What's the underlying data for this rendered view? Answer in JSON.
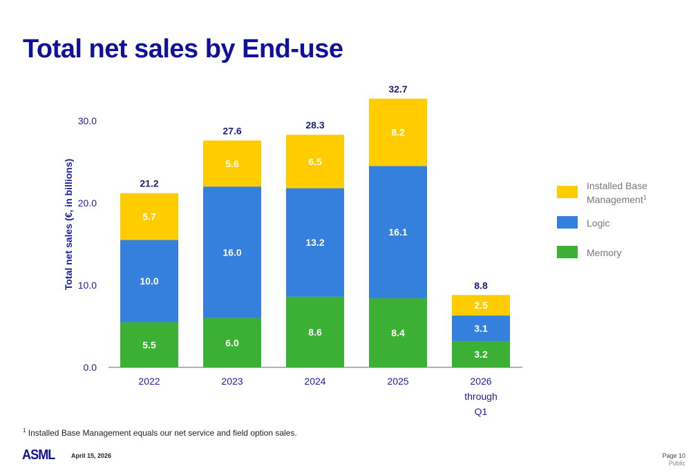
{
  "chart_data": {
    "type": "bar",
    "stacked": true,
    "title": "Total net sales by End-use",
    "ylabel": "Total net sales (€, in billions)",
    "ylim": [
      0,
      30
    ],
    "yticks": [
      "0.0",
      "10.0",
      "20.0",
      "30.0"
    ],
    "categories": [
      "2022",
      "2023",
      "2024",
      "2025",
      "2026 through Q1"
    ],
    "series": [
      {
        "name": "Memory",
        "color": "#3cb034",
        "values": [
          5.5,
          6.0,
          8.6,
          8.4,
          3.2
        ]
      },
      {
        "name": "Logic",
        "color": "#3580dd",
        "values": [
          10.0,
          16.0,
          13.2,
          16.1,
          3.1
        ]
      },
      {
        "name": "Installed Base Management",
        "color": "#ffcc00",
        "values": [
          5.7,
          5.6,
          6.5,
          8.2,
          2.5
        ]
      }
    ],
    "totals": [
      "21.2",
      "27.6",
      "28.3",
      "32.7",
      "8.8"
    ],
    "legend_placement": "right",
    "grid": false
  },
  "legend": {
    "ibm_line1": "Installed Base",
    "ibm_line2": "Management",
    "ibm_sup": "1",
    "logic": "Logic",
    "memory": "Memory"
  },
  "footnote": {
    "sup": "1",
    "text": " Installed Base Management equals our net service and field option sales."
  },
  "footer": {
    "logo": "ASML",
    "date": "April 15, 2026",
    "page": "Page 10",
    "classification": "Public"
  }
}
